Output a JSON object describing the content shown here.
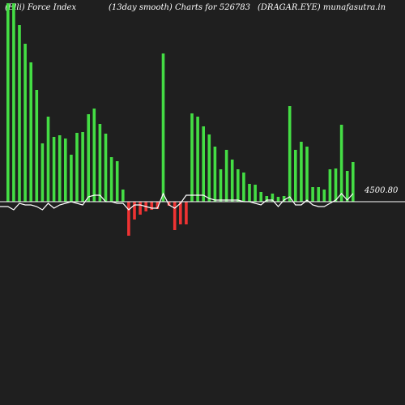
{
  "header": {
    "left": "(Elli) Force  Index",
    "center": "(13day smooth) Charts for 526783",
    "right": "(DRAGAR.EYE) munafasutra.in"
  },
  "colors": {
    "background": "#1f1f1f",
    "positive": "#44dd44",
    "negative": "#ee3333",
    "line": "#ffffff",
    "baseline": "#ffffff"
  },
  "chart_data": {
    "type": "bar",
    "baseline_label": "4500.80",
    "grid": false,
    "ylim": [
      -45,
      245
    ],
    "values": [
      245,
      245,
      218,
      195,
      172,
      138,
      72,
      105,
      80,
      82,
      78,
      58,
      85,
      86,
      108,
      115,
      96,
      84,
      55,
      50,
      15,
      -42,
      -22,
      -16,
      -12,
      -10,
      -9,
      183,
      -5,
      -35,
      -28,
      -28,
      109,
      105,
      93,
      83,
      68,
      40,
      64,
      52,
      40,
      36,
      22,
      21,
      12,
      7,
      10,
      6,
      7,
      118,
      64,
      74,
      68,
      18,
      18,
      15,
      40,
      41,
      95,
      38,
      49
    ],
    "series": [
      {
        "values": [
          -6,
          -10,
          -2,
          -4,
          -4,
          -6,
          -10,
          -2,
          -8,
          -4,
          -2,
          0,
          -2,
          -4,
          6,
          8,
          8,
          0,
          0,
          -2,
          -2,
          -10,
          -4,
          -4,
          -6,
          -8,
          -8,
          10,
          -4,
          -8,
          -2,
          8,
          8,
          8,
          8,
          4,
          2,
          2,
          2,
          2,
          2,
          0,
          0,
          -2,
          -4,
          2,
          2,
          -6,
          2,
          6,
          -4,
          -4,
          2,
          -4,
          -6,
          -6,
          -2,
          2,
          10,
          2,
          10
        ]
      }
    ]
  }
}
